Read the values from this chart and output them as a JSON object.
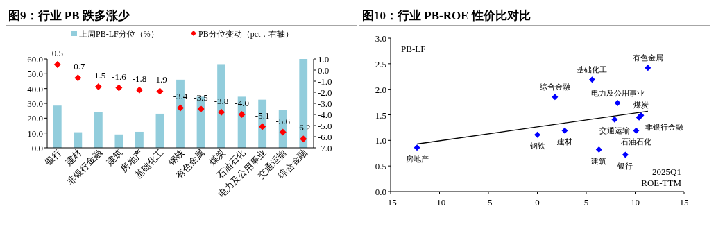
{
  "chart_data": [
    {
      "type": "bar",
      "title": "图9：行业 PB 跌多涨少",
      "categories": [
        "银行",
        "建材",
        "非银行金融",
        "建筑",
        "房地产",
        "基础化工",
        "钢铁",
        "有色金属",
        "煤炭",
        "石油石化",
        "电力及公用事业",
        "交通运输",
        "综合金融"
      ],
      "series": [
        {
          "name": "上周PB-LF分位（%）",
          "type": "bar",
          "color": "#92cddc",
          "values": [
            28.5,
            10.5,
            24,
            9,
            10.8,
            23,
            46,
            34.5,
            56.5,
            34.5,
            32.5,
            25.5,
            60
          ]
        },
        {
          "name": "PB分位变动（pct，右轴）",
          "type": "scatter",
          "axis": "y2",
          "color": "#ff0000",
          "values": [
            0.5,
            -0.7,
            -1.5,
            -1.6,
            -1.8,
            -1.9,
            -3.4,
            -3.5,
            -3.8,
            -4.0,
            -5.1,
            -5.6,
            -6.2
          ],
          "value_labels": [
            "0.5",
            "-0.7",
            "-1.5",
            "-1.6",
            "-1.8",
            "-1.9",
            "-3.4",
            "-3.5",
            "-3.8",
            "-4.0",
            "-5.1",
            "-5.6",
            "-6.2"
          ]
        }
      ],
      "ylim": [
        0,
        60
      ],
      "yticks": [
        {
          "value": 0,
          "label": "0.0"
        },
        {
          "value": 10,
          "label": "10.0"
        },
        {
          "value": 20,
          "label": "20.0"
        },
        {
          "value": 30,
          "label": "30.0"
        },
        {
          "value": 40,
          "label": "40.0"
        },
        {
          "value": 50,
          "label": "50.0"
        },
        {
          "value": 60,
          "label": "60.0"
        }
      ],
      "y2lim": [
        -7,
        1
      ],
      "y2ticks": [
        {
          "value": 1,
          "label": "1.0"
        },
        {
          "value": 0,
          "label": "0.0"
        },
        {
          "value": -1,
          "label": "-1.0"
        },
        {
          "value": -2,
          "label": "-2.0"
        },
        {
          "value": -3,
          "label": "-3.0"
        },
        {
          "value": -4,
          "label": "-4.0"
        },
        {
          "value": -5,
          "label": "-5.0"
        },
        {
          "value": -6,
          "label": "-6.0"
        },
        {
          "value": -7,
          "label": "-7.0"
        }
      ],
      "marker": "diamond",
      "legend": "top"
    },
    {
      "type": "scatter",
      "title": "图10：行业 PB-ROE 性价比对比",
      "ylabel": "PB-LF",
      "xlabel": "2025Q1 ROE-TTM",
      "series": [
        {
          "type": "scatter",
          "color": "#0000ff",
          "x": [
            11.3,
            5.6,
            1.8,
            8.2,
            10.6,
            7.9,
            2.8,
            10.4,
            10.1,
            0,
            6.3,
            9,
            -12.3
          ],
          "values": [
            2.42,
            2.19,
            1.85,
            1.73,
            1.49,
            1.41,
            1.19,
            1.45,
            1.19,
            1.11,
            0.82,
            0.72,
            0.86
          ]
        },
        {
          "type": "line",
          "color": "#000000",
          "marker": "none",
          "x": [
            -12.3,
            11.3
          ],
          "values": [
            0.93,
            1.57
          ]
        }
      ],
      "annotations": [
        {
          "text": "有色金属",
          "x": 11.3,
          "y": 2.42
        },
        {
          "text": "基础化工",
          "x": 5.6,
          "y": 2.19
        },
        {
          "text": "综合金融",
          "x": 1.8,
          "y": 1.85
        },
        {
          "text": "电力及公用事业",
          "x": 8.2,
          "y": 1.73
        },
        {
          "text": "煤炭",
          "x": 10.6,
          "y": 1.49
        },
        {
          "text": "交通运输",
          "x": 7.9,
          "y": 1.41
        },
        {
          "text": "建材",
          "x": 2.8,
          "y": 1.19
        },
        {
          "text": "非银行金融",
          "x": 10.4,
          "y": 1.45
        },
        {
          "text": "石油石化",
          "x": 10.1,
          "y": 1.19
        },
        {
          "text": "钢铁",
          "x": 0,
          "y": 1.11
        },
        {
          "text": "建筑",
          "x": 6.3,
          "y": 0.82
        },
        {
          "text": "银行",
          "x": 9,
          "y": 0.72
        },
        {
          "text": "房地产",
          "x": -12.3,
          "y": 0.86
        }
      ],
      "xlim": [
        -15,
        15
      ],
      "xticks": [
        -15,
        -10,
        -5,
        0,
        5,
        10,
        15
      ],
      "ylim": [
        0,
        3
      ],
      "yticks": [
        {
          "value": 0,
          "label": "0.0"
        },
        {
          "value": 0.5,
          "label": "0.5"
        },
        {
          "value": 1,
          "label": "1.0"
        },
        {
          "value": 1.5,
          "label": "1.5"
        },
        {
          "value": 2,
          "label": "2.0"
        },
        {
          "value": 2.5,
          "label": "2.5"
        },
        {
          "value": 3,
          "label": "3.0"
        }
      ],
      "marker": "diamond"
    }
  ]
}
